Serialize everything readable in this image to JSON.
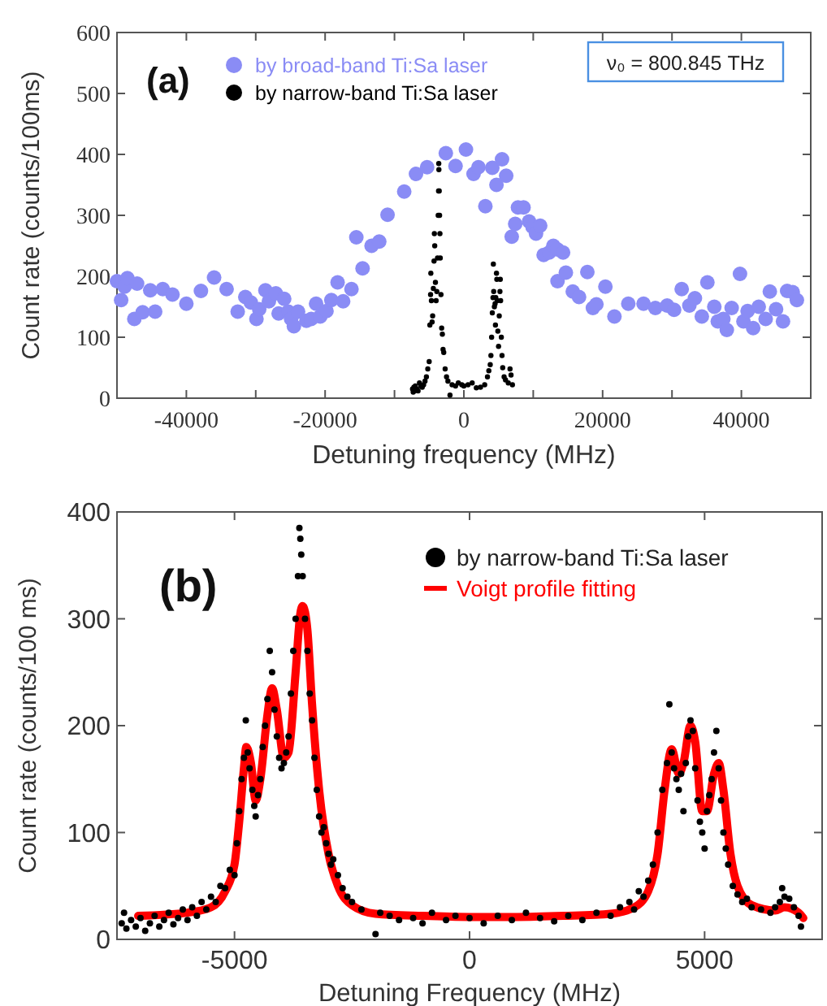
{
  "chart_data": [
    {
      "type": "scatter",
      "xlabel": "Detuning frequency (MHz)",
      "ylabel": "Count rate (counts/100ms)",
      "xlim": [
        -50000,
        50000
      ],
      "ylim": [
        0,
        600
      ],
      "xticks": [
        -40000,
        {
          "value": -30000,
          "label": null
        },
        -20000,
        {
          "value": -10000,
          "label": null
        },
        0,
        {
          "value": 10000,
          "label": null
        },
        20000,
        {
          "value": 30000,
          "label": null
        },
        40000
      ],
      "yticks": [
        0,
        100,
        200,
        300,
        400,
        500,
        600
      ],
      "grid": false,
      "legend": "top left",
      "marker": "circle",
      "annotations": [
        "(a)",
        "ν₀ = 800.845 THz"
      ],
      "series": [
        {
          "name": "by broad-band Ti:Sa laser",
          "color": "#8a8cf5",
          "x": [
            -50000,
            -49400,
            -48900,
            -48500,
            -47500,
            -47100,
            -46300,
            -45200,
            -44500,
            -43400,
            -42000,
            -40000,
            -37900,
            -36000,
            -34200,
            -32600,
            -31500,
            -30700,
            -29900,
            -29500,
            -28600,
            -28100,
            -27100,
            -26700,
            -25900,
            -25300,
            -24900,
            -24500,
            -23900,
            -22700,
            -22000,
            -21300,
            -20700,
            -19800,
            -19100,
            -18200,
            -17400,
            -16200,
            -15500,
            -14600,
            -13300,
            -12200,
            -11000,
            -8600,
            -6900,
            -5300,
            -2600,
            -1200,
            300,
            1400,
            2100,
            3100,
            4100,
            4700,
            5500,
            6100,
            6900,
            7400,
            7800,
            8600,
            9400,
            9900,
            10400,
            11000,
            11500,
            12300,
            12900,
            13500,
            14300,
            13500,
            14700,
            15700,
            16600,
            17800,
            18600,
            19100,
            20400,
            21700,
            23700,
            25900,
            27600,
            29300,
            30300,
            31400,
            32500,
            33300,
            34300,
            35100,
            36100,
            36600,
            37400,
            37900,
            38600,
            39800,
            40300,
            40900,
            41700,
            42500,
            43500,
            44100,
            45000,
            46000,
            46600,
            47400,
            48000
          ],
          "values": [
            192,
            161,
            183,
            197,
            130,
            188,
            141,
            177,
            142,
            179,
            170,
            155,
            176,
            198,
            179,
            142,
            166,
            157,
            130,
            146,
            177,
            159,
            172,
            139,
            163,
            142,
            130,
            118,
            142,
            127,
            130,
            155,
            134,
            143,
            161,
            190,
            159,
            179,
            264,
            213,
            250,
            257,
            301,
            339,
            368,
            379,
            402,
            381,
            408,
            368,
            379,
            315,
            378,
            350,
            392,
            365,
            265,
            286,
            313,
            313,
            290,
            281,
            270,
            283,
            235,
            239,
            250,
            244,
            239,
            192,
            206,
            175,
            166,
            207,
            148,
            154,
            183,
            134,
            155,
            155,
            148,
            152,
            145,
            179,
            152,
            164,
            134,
            190,
            150,
            126,
            130,
            112,
            148,
            204,
            126,
            143,
            115,
            150,
            130,
            175,
            146,
            126,
            176,
            174,
            161
          ]
        },
        {
          "name": "by narrow-band Ti:Sa laser",
          "color": "#000000",
          "x": [
            -7400,
            -7300,
            -7200,
            -7100,
            -7000,
            -6800,
            -6600,
            -6400,
            -6200,
            -6000,
            -5800,
            -5600,
            -5400,
            -5200,
            -5000,
            -4900,
            -4800,
            -4760,
            -4680,
            -4580,
            -4500,
            -4400,
            -4300,
            -4250,
            -4200,
            -4100,
            -4000,
            -3900,
            -3800,
            -3700,
            -3650,
            -3620,
            -3600,
            -3550,
            -3500,
            -3450,
            -3400,
            -3300,
            -3200,
            -3100,
            -3000,
            -2900,
            -2700,
            -2500,
            -2300,
            -2000,
            -1700,
            -1200,
            -800,
            -300,
            0,
            600,
            1200,
            1800,
            2400,
            3000,
            3400,
            3600,
            3800,
            3900,
            4000,
            4100,
            4200,
            4250,
            4300,
            4400,
            4500,
            4550,
            4600,
            4700,
            4750,
            4800,
            4900,
            5000,
            5100,
            5200,
            5250,
            5300,
            5400,
            5500,
            5600,
            5800,
            6000,
            6400,
            6650,
            6800,
            7000
          ],
          "values": [
            15,
            10,
            18,
            12,
            20,
            15,
            12,
            25,
            20,
            18,
            22,
            28,
            35,
            48,
            60,
            120,
            170,
            205,
            160,
            125,
            135,
            180,
            225,
            270,
            250,
            190,
            160,
            175,
            230,
            300,
            340,
            385,
            375,
            340,
            300,
            270,
            230,
            170,
            115,
            105,
            80,
            75,
            48,
            35,
            28,
            5,
            22,
            20,
            25,
            22,
            20,
            22,
            25,
            17,
            18,
            22,
            35,
            45,
            55,
            70,
            100,
            140,
            165,
            220,
            175,
            150,
            155,
            120,
            165,
            205,
            195,
            160,
            110,
            85,
            135,
            175,
            195,
            160,
            100,
            70,
            50,
            35,
            30,
            25,
            48,
            38,
            22
          ]
        }
      ]
    },
    {
      "type": "scatter",
      "xlabel": "Detuning Frequency (MHz)",
      "ylabel": "Count rate (counts/100 ms)",
      "xlim": [
        -7500,
        7500
      ],
      "ylim": [
        0,
        400
      ],
      "xticks": [
        -5000,
        0,
        5000
      ],
      "yticks": [
        0,
        100,
        200,
        300,
        400
      ],
      "grid": false,
      "legend": "top right",
      "marker": "circle",
      "annotations": [
        "(b)"
      ],
      "series": [
        {
          "name": "by narrow-band Ti:Sa laser",
          "color": "#000000",
          "x": [
            -7400,
            -7350,
            -7300,
            -7200,
            -7100,
            -7000,
            -6900,
            -6800,
            -6700,
            -6600,
            -6500,
            -6400,
            -6300,
            -6200,
            -6100,
            -6000,
            -5900,
            -5800,
            -5700,
            -5600,
            -5500,
            -5400,
            -5300,
            -5200,
            -5100,
            -5000,
            -4950,
            -4900,
            -4850,
            -4800,
            -4760,
            -4720,
            -4680,
            -4620,
            -4580,
            -4550,
            -4500,
            -4450,
            -4400,
            -4350,
            -4300,
            -4250,
            -4200,
            -4150,
            -4100,
            -4050,
            -4000,
            -3950,
            -3900,
            -3850,
            -3800,
            -3750,
            -3700,
            -3650,
            -3620,
            -3600,
            -3580,
            -3550,
            -3500,
            -3450,
            -3400,
            -3350,
            -3300,
            -3250,
            -3200,
            -3150,
            -3100,
            -3050,
            -3000,
            -2950,
            -2900,
            -2800,
            -2700,
            -2600,
            -2500,
            -2300,
            -2000,
            -1900,
            -1700,
            -1500,
            -1200,
            -1000,
            -800,
            -500,
            -300,
            0,
            300,
            600,
            900,
            1200,
            1500,
            1800,
            2100,
            2400,
            2700,
            3000,
            3200,
            3400,
            3500,
            3600,
            3700,
            3800,
            3900,
            4000,
            4100,
            4200,
            4250,
            4300,
            4350,
            4400,
            4450,
            4500,
            4550,
            4600,
            4650,
            4700,
            4750,
            4800,
            4850,
            4900,
            4950,
            5000,
            5050,
            5100,
            5150,
            5200,
            5250,
            5300,
            5350,
            5400,
            5450,
            5500,
            5600,
            5700,
            5800,
            5900,
            6000,
            6200,
            6400,
            6500,
            6600,
            6650,
            6700,
            6800,
            6900,
            7000,
            7050
          ],
          "values": [
            15,
            25,
            10,
            18,
            12,
            20,
            8,
            15,
            22,
            12,
            18,
            25,
            14,
            20,
            28,
            18,
            30,
            22,
            35,
            28,
            40,
            35,
            50,
            48,
            65,
            60,
            90,
            120,
            150,
            170,
            205,
            175,
            160,
            140,
            125,
            115,
            135,
            150,
            180,
            200,
            225,
            270,
            250,
            215,
            190,
            170,
            160,
            165,
            175,
            190,
            230,
            270,
            300,
            340,
            385,
            375,
            360,
            340,
            300,
            270,
            230,
            205,
            170,
            140,
            115,
            100,
            105,
            90,
            80,
            70,
            75,
            60,
            48,
            40,
            35,
            28,
            5,
            25,
            22,
            18,
            20,
            15,
            25,
            18,
            22,
            20,
            15,
            22,
            18,
            25,
            20,
            17,
            22,
            18,
            25,
            22,
            30,
            35,
            28,
            45,
            40,
            55,
            70,
            100,
            140,
            165,
            220,
            175,
            160,
            150,
            140,
            155,
            120,
            165,
            190,
            205,
            195,
            160,
            130,
            110,
            100,
            85,
            120,
            135,
            150,
            175,
            195,
            160,
            130,
            100,
            85,
            70,
            50,
            42,
            35,
            38,
            30,
            28,
            25,
            30,
            35,
            48,
            40,
            38,
            30,
            22,
            12
          ]
        },
        {
          "name": "Voigt profile fitting",
          "type": "line",
          "color": "#ff0000",
          "marker": "none",
          "x": [
            -7050,
            -6000,
            -5500,
            -5200,
            -5000,
            -4900,
            -4800,
            -4750,
            -4650,
            -4550,
            -4450,
            -4300,
            -4200,
            -4100,
            -3950,
            -3850,
            -3700,
            -3600,
            -3550,
            -3450,
            -3350,
            -3200,
            -3000,
            -2800,
            -2500,
            -2000,
            -1000,
            0,
            1000,
            2000,
            3000,
            3500,
            3800,
            4000,
            4150,
            4300,
            4450,
            4550,
            4700,
            4800,
            4950,
            5050,
            5200,
            5300,
            5400,
            5550,
            5700,
            6000,
            6500,
            6700,
            7000,
            7100
          ],
          "values": [
            22,
            25,
            30,
            45,
            70,
            110,
            160,
            180,
            165,
            130,
            150,
            210,
            235,
            215,
            170,
            175,
            250,
            305,
            312,
            290,
            220,
            140,
            80,
            50,
            32,
            24,
            22,
            21,
            21,
            22,
            24,
            30,
            45,
            80,
            140,
            178,
            155,
            165,
            200,
            185,
            120,
            120,
            155,
            165,
            140,
            80,
            50,
            32,
            27,
            30,
            25,
            20
          ]
        }
      ]
    }
  ]
}
